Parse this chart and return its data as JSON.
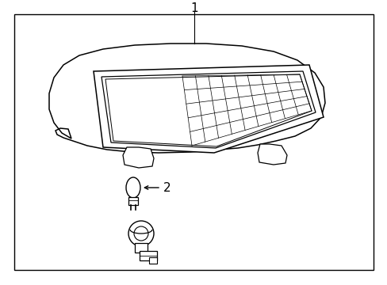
{
  "background_color": "#ffffff",
  "border_color": "#000000",
  "line_color": "#000000",
  "label1": "1",
  "label2": "2",
  "fig_width": 4.89,
  "fig_height": 3.6,
  "dpi": 100
}
